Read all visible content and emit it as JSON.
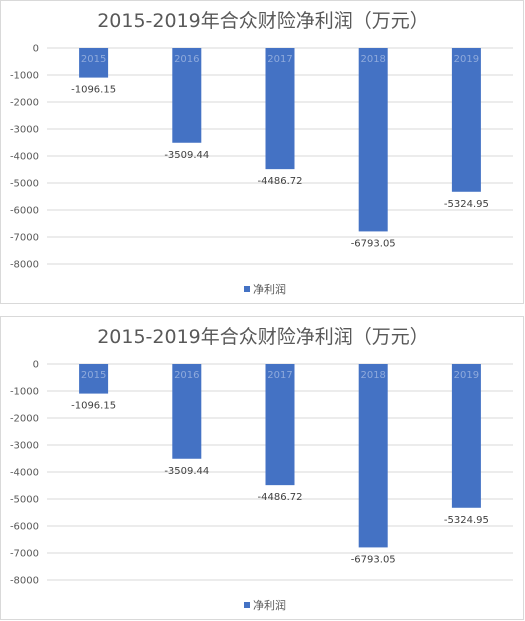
{
  "chart_data": [
    {
      "type": "bar",
      "title": "2015-2019年合众财险净利润（万元）",
      "categories": [
        "2015",
        "2016",
        "2017",
        "2018",
        "2019"
      ],
      "series": [
        {
          "name": "净利润",
          "values": [
            -1096.15,
            -3509.44,
            -4486.72,
            -6793.05,
            -5324.95
          ]
        }
      ],
      "data_labels": [
        "-1096.15",
        "-3509.44",
        "-4486.72",
        "-6793.05",
        "-5324.95"
      ],
      "y_ticks": [
        "0",
        "-1000",
        "-2000",
        "-3000",
        "-4000",
        "-5000",
        "-6000",
        "-7000",
        "-8000"
      ],
      "ylim": [
        -8000,
        0
      ],
      "grid": true,
      "legend": "bottom",
      "bar_color": "#4472c4"
    },
    {
      "type": "bar",
      "title": "2015-2019年合众财险净利润（万元）",
      "categories": [
        "2015",
        "2016",
        "2017",
        "2018",
        "2019"
      ],
      "series": [
        {
          "name": "净利润",
          "values": [
            -1096.15,
            -3509.44,
            -4486.72,
            -6793.05,
            -5324.95
          ]
        }
      ],
      "data_labels": [
        "-1096.15",
        "-3509.44",
        "-4486.72",
        "-6793.05",
        "-5324.95"
      ],
      "y_ticks": [
        "0",
        "-1000",
        "-2000",
        "-3000",
        "-4000",
        "-5000",
        "-6000",
        "-7000",
        "-8000"
      ],
      "ylim": [
        -8000,
        0
      ],
      "grid": true,
      "legend": "bottom",
      "bar_color": "#4472c4"
    }
  ]
}
